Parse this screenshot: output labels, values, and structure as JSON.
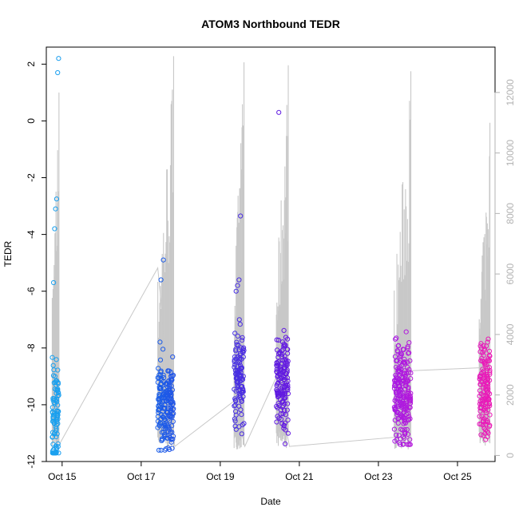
{
  "chart_data": {
    "type": "scatter",
    "title": "ATOM3 Northbound TEDR",
    "xlabel": "Date",
    "ylabel": "TEDR",
    "x_range_days": [
      14.6,
      25.95
    ],
    "ylim": [
      -12,
      2.6
    ],
    "y2lim": [
      -200,
      13500
    ],
    "x_ticks": [
      {
        "day": 15,
        "label": "Oct 15"
      },
      {
        "day": 17,
        "label": "Oct 17"
      },
      {
        "day": 19,
        "label": "Oct 19"
      },
      {
        "day": 21,
        "label": "Oct 21"
      },
      {
        "day": 23,
        "label": "Oct 23"
      },
      {
        "day": 25,
        "label": "Oct 25"
      }
    ],
    "y_ticks": [
      2,
      0,
      -2,
      -4,
      -6,
      -8,
      -10,
      -12
    ],
    "y2_ticks": [
      0,
      2000,
      4000,
      6000,
      8000,
      10000,
      12000
    ],
    "grid": false,
    "colors": {
      "altitude_line": "#c8c8c8",
      "right_axis": "#b3b3b3",
      "gradient_start": "#1aa6f0",
      "gradient_mid1": "#1a5ee8",
      "gradient_mid2": "#5a1ae0",
      "gradient_mid3": "#a01ae8",
      "gradient_end": "#f01ab4"
    },
    "flights": [
      {
        "name": "Oct 14",
        "day_start": 14.75,
        "day_end": 14.92,
        "tedr_min": -11.7,
        "tedr_max": -6.3,
        "tedr_center": -10.5,
        "count": 90,
        "alt_peak": 12000,
        "outliers": [
          -5.7,
          -3.8,
          -3.1,
          -2.75,
          1.7,
          2.2
        ]
      },
      {
        "name": "Oct 17",
        "day_start": 17.42,
        "day_end": 17.82,
        "tedr_min": -11.6,
        "tedr_max": -6.7,
        "tedr_center": -10.0,
        "count": 200,
        "alt_peak": 13200,
        "outliers": [
          -5.6,
          -4.9
        ]
      },
      {
        "name": "Oct 19",
        "day_start": 19.35,
        "day_end": 19.6,
        "tedr_min": -11.6,
        "tedr_max": -6.5,
        "tedr_center": -9.0,
        "count": 110,
        "alt_peak": 13000,
        "outliers": [
          -6.0,
          -5.8,
          -5.6,
          -3.35
        ]
      },
      {
        "name": "Oct 20",
        "day_start": 20.42,
        "day_end": 20.72,
        "tedr_min": -11.4,
        "tedr_max": -6.4,
        "tedr_center": -9.2,
        "count": 140,
        "alt_peak": 12900,
        "outliers": [
          0.3
        ]
      },
      {
        "name": "Oct 23",
        "day_start": 23.4,
        "day_end": 23.82,
        "tedr_min": -11.4,
        "tedr_max": -5.8,
        "tedr_center": -9.6,
        "count": 220,
        "alt_peak": 12700,
        "outliers": []
      },
      {
        "name": "Oct 25",
        "day_start": 25.55,
        "day_end": 25.82,
        "tedr_min": -11.4,
        "tedr_max": -5.8,
        "tedr_center": -9.5,
        "count": 140,
        "alt_peak": 11000,
        "outliers": []
      }
    ],
    "connector_line_days": [
      {
        "x": 14.9,
        "alt": 300
      },
      {
        "x": 17.42,
        "alt": 6200
      },
      {
        "x": 17.85,
        "alt": 300
      },
      {
        "x": 19.35,
        "alt": 1800
      },
      {
        "x": 19.62,
        "alt": 300
      },
      {
        "x": 20.42,
        "alt": 2600
      },
      {
        "x": 20.75,
        "alt": 300
      },
      {
        "x": 23.4,
        "alt": 600
      },
      {
        "x": 23.8,
        "alt": 2800
      },
      {
        "x": 25.55,
        "alt": 2900
      }
    ]
  }
}
